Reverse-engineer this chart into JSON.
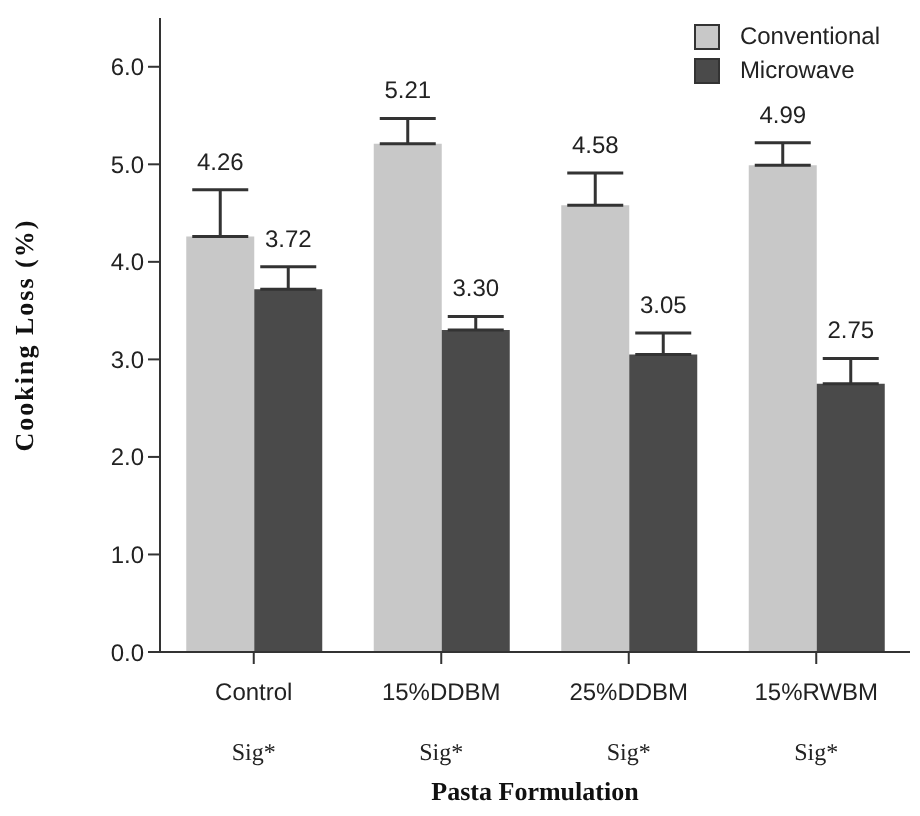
{
  "chart_data": {
    "type": "bar",
    "xlabel": "Pasta Formulation",
    "ylabel": "Cooking Loss (%)",
    "categories": [
      "Control",
      "15%DDBM",
      "25%DDBM",
      "15%RWBM"
    ],
    "series": [
      {
        "name": "Conventional",
        "color": "#c8c8c8",
        "values": [
          4.26,
          5.21,
          4.58,
          4.99
        ],
        "value_labels": [
          "4.26",
          "5.21",
          "4.58",
          "4.99"
        ],
        "errors": [
          [
            4.26,
            4.74
          ],
          [
            5.21,
            5.47
          ],
          [
            4.58,
            4.91
          ],
          [
            4.99,
            5.22
          ]
        ]
      },
      {
        "name": "Microwave",
        "color": "#4a4a4a",
        "values": [
          3.72,
          3.3,
          3.05,
          2.75
        ],
        "value_labels": [
          "3.72",
          "3.30",
          "3.05",
          "2.75"
        ],
        "errors": [
          [
            3.72,
            3.95
          ],
          [
            3.3,
            3.44
          ],
          [
            3.05,
            3.27
          ],
          [
            2.75,
            3.01
          ]
        ]
      }
    ],
    "ylim": [
      0,
      6.5
    ],
    "yticks": [
      {
        "value": 0,
        "label": "0.0"
      },
      {
        "value": 1,
        "label": "1.0"
      },
      {
        "value": 2,
        "label": "2.0"
      },
      {
        "value": 3,
        "label": "3.0"
      },
      {
        "value": 4,
        "label": "4.0"
      },
      {
        "value": 5,
        "label": "5.0"
      },
      {
        "value": 6,
        "label": "6.0"
      }
    ],
    "legend": "top right",
    "annotations": [
      "Sig*",
      "Sig*",
      "Sig*",
      "Sig*"
    ]
  }
}
